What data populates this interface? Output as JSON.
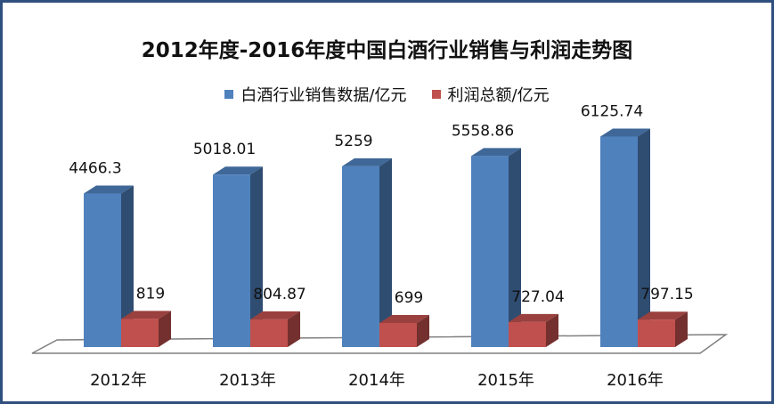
{
  "chart_data": {
    "type": "bar",
    "title": "2012年度-2016年度中国白酒行业销售与利润走势图",
    "categories": [
      "2012年",
      "2013年",
      "2014年",
      "2015年",
      "2016年"
    ],
    "series": [
      {
        "name": "白酒行业销售数据/亿元",
        "values": [
          4466.3,
          5018.01,
          5259,
          5558.86,
          6125.74
        ],
        "labels": [
          "4466.3",
          "5018.01",
          "5259",
          "5558.86",
          "6125.74"
        ],
        "color": "#4f81bd"
      },
      {
        "name": "利润总额/亿元",
        "values": [
          819,
          804.87,
          699,
          727.04,
          797.15
        ],
        "labels": [
          "819",
          "804.87",
          "699",
          "727.04",
          "797.15"
        ],
        "color": "#c0504d"
      }
    ],
    "ylim": [
      0,
      6500
    ],
    "legend_position": "top",
    "grid": false,
    "style": "3d-clustered"
  }
}
